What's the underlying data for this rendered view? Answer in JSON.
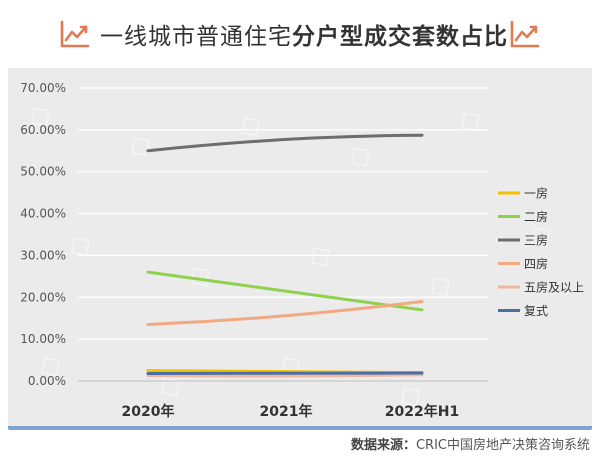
{
  "header": {
    "title_plain": "一线城市普通住宅",
    "title_bold": "分户型成交套数占比",
    "left_icon": "line-chart-icon",
    "right_icon": "line-chart-icon",
    "icon_color": "#e07a52"
  },
  "source": {
    "label": "数据来源：",
    "text": "CRIC中国房地产决策咨询系统"
  },
  "chart_data": {
    "type": "line",
    "x": [
      "2020年",
      "2021年",
      "2022年H1"
    ],
    "yticks": [
      "70.00%",
      "60.00%",
      "50.00%",
      "40.00%",
      "30.00%",
      "20.00%",
      "10.00%",
      "0.00%"
    ],
    "ylim": [
      0,
      70
    ],
    "grid": true,
    "legend_position": "right",
    "series": [
      {
        "name": "一房",
        "color": "#f2c200",
        "values": [
          2.5,
          2.3,
          2.0
        ]
      },
      {
        "name": "二房",
        "color": "#8fd14f",
        "values": [
          26.0,
          21.5,
          17.0
        ]
      },
      {
        "name": "三房",
        "color": "#6d6d6d",
        "values": [
          55.0,
          57.7,
          58.7
        ]
      },
      {
        "name": "四房",
        "color": "#f2a882",
        "values": [
          13.5,
          15.6,
          19.0
        ]
      },
      {
        "name": "五房及以上",
        "color": "#f0b8a0",
        "values": [
          1.3,
          1.2,
          1.5
        ]
      },
      {
        "name": "复式",
        "color": "#4a6fa5",
        "values": [
          1.8,
          1.9,
          1.9
        ]
      }
    ]
  }
}
